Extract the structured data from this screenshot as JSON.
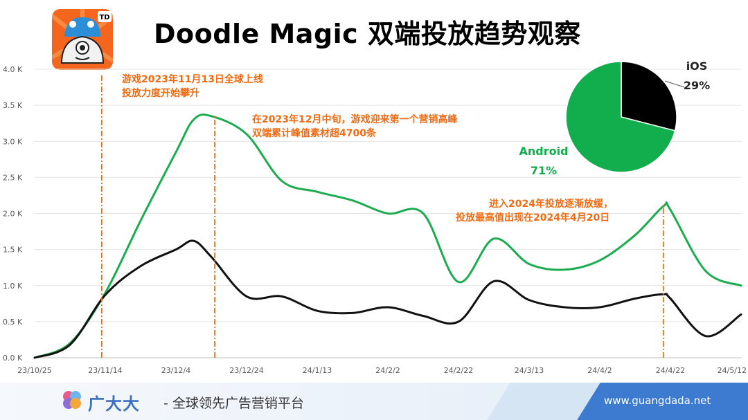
{
  "header": {
    "title": "Doodle Magic 双端投放趋势观察",
    "app_icon_badge": "TD"
  },
  "chart_data": {
    "type": "line",
    "x_dates": [
      "2023-10-25",
      "2023-11-04",
      "2023-11-14",
      "2023-11-24",
      "2023-12-04",
      "2023-12-09",
      "2023-12-14",
      "2023-12-24",
      "2024-01-03",
      "2024-01-13",
      "2024-01-23",
      "2024-02-02",
      "2024-02-12",
      "2024-02-22",
      "2024-03-03",
      "2024-03-13",
      "2024-03-23",
      "2024-04-02",
      "2024-04-12",
      "2024-04-20",
      "2024-04-22",
      "2024-05-02",
      "2024-05-12"
    ],
    "series": [
      {
        "name": "Android",
        "color": "#1aac4f",
        "values": [
          0,
          200,
          900,
          1900,
          2850,
          3300,
          3350,
          3100,
          2450,
          2300,
          2180,
          2000,
          2000,
          1050,
          1650,
          1300,
          1220,
          1350,
          1700,
          2100,
          2050,
          1200,
          1000
        ]
      },
      {
        "name": "iOS",
        "color": "#111111",
        "values": [
          0,
          180,
          870,
          1270,
          1500,
          1620,
          1400,
          850,
          850,
          650,
          620,
          700,
          580,
          500,
          1060,
          800,
          700,
          700,
          820,
          880,
          820,
          300,
          600
        ]
      }
    ],
    "xtick_labels": [
      "23/10/25",
      "23/11/14",
      "23/12/4",
      "23/12/24",
      "24/1/13",
      "24/2/2",
      "24/2/22",
      "24/3/13",
      "24/4/2",
      "24/4/22",
      "24/5/12"
    ],
    "ytick_labels": [
      "0.0 K",
      "0.5 K",
      "1.0 K",
      "1.5 K",
      "2.0 K",
      "2.5 K",
      "3.0 K",
      "3.5 K",
      "4.0 K"
    ],
    "ylim": [
      0,
      4000
    ],
    "grid": true,
    "annotations": [
      {
        "date": "2023-11-13",
        "lines": [
          "游戏2023年11月13日全球上线",
          "投放力度开始攀升"
        ]
      },
      {
        "date": "2023-12-15",
        "lines": [
          "在2023年12月中旬，游戏迎来第一个营销高峰",
          "双端累计峰值素材超4700条"
        ]
      },
      {
        "date": "2024-04-20",
        "lines": [
          "进入2024年投放逐渐放缓，",
          "投放最高值出现在2024年4月20日"
        ]
      }
    ],
    "pie": {
      "type": "pie",
      "slices": [
        {
          "label": "iOS",
          "percent_label": "29%",
          "value": 29,
          "color": "#000000"
        },
        {
          "label": "Android",
          "percent_label": "71%",
          "value": 71,
          "color": "#12ad4c"
        }
      ]
    },
    "annotation_color": "#f06a12"
  },
  "footer": {
    "brand_name": "广大大",
    "slogan": "- 全球领先广告营销平台",
    "url": "www.guangdada.net"
  }
}
